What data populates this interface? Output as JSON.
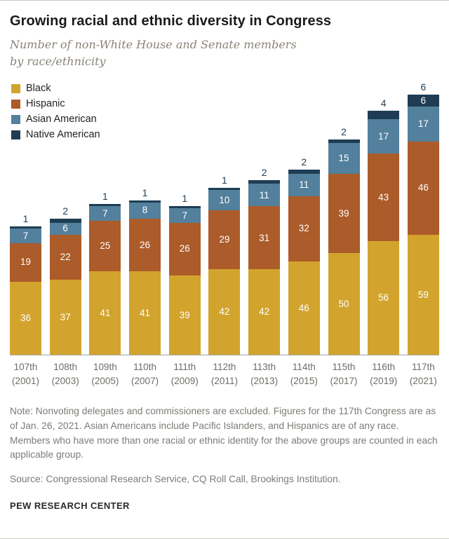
{
  "header": {
    "title": "Growing racial and ethnic diversity in Congress",
    "subtitle_line1": "Number of non-White House and Senate members",
    "subtitle_line2": "by race/ethnicity"
  },
  "chart_data": {
    "type": "bar",
    "stacked": true,
    "title": "Growing racial and ethnic diversity in Congress",
    "subtitle": "Number of non-White House and Senate members by race/ethnicity",
    "grid": false,
    "legend_position": "top-left",
    "top_labels_series": "Native American",
    "categories": [
      {
        "label": "107th",
        "year": "(2001)"
      },
      {
        "label": "108th",
        "year": "(2003)"
      },
      {
        "label": "109th",
        "year": "(2005)"
      },
      {
        "label": "110th",
        "year": "(2007)"
      },
      {
        "label": "111th",
        "year": "(2009)"
      },
      {
        "label": "112th",
        "year": "(2011)"
      },
      {
        "label": "113th",
        "year": "(2013)"
      },
      {
        "label": "114th",
        "year": "(2015)"
      },
      {
        "label": "115th",
        "year": "(2017)"
      },
      {
        "label": "116th",
        "year": "(2019)"
      },
      {
        "label": "117th",
        "year": "(2021)"
      }
    ],
    "series": [
      {
        "name": "Black",
        "color": "#d2a42e",
        "values": [
          36,
          37,
          41,
          41,
          39,
          42,
          42,
          46,
          50,
          56,
          59
        ]
      },
      {
        "name": "Hispanic",
        "color": "#ac5b2a",
        "values": [
          19,
          22,
          25,
          26,
          26,
          29,
          31,
          32,
          39,
          43,
          46
        ]
      },
      {
        "name": "Asian American",
        "color": "#53809c",
        "values": [
          7,
          6,
          7,
          8,
          7,
          10,
          11,
          11,
          15,
          17,
          17
        ]
      },
      {
        "name": "Native American",
        "color": "#1e3d54",
        "values": [
          1,
          2,
          1,
          1,
          1,
          1,
          2,
          2,
          2,
          4,
          6
        ]
      }
    ]
  },
  "notes": {
    "note": "Note: Nonvoting delegates and commissioners are excluded. Figures for the 117th Congress are as of Jan. 26, 2021. Asian Americans include Pacific Islanders, and Hispanics are of any race. Members who have more than one racial or ethnic identity for the above groups are counted in each applicable group.",
    "source": "Source: Congressional Research Service, CQ Roll Call, Brookings Institution."
  },
  "footer": {
    "brand": "PEW RESEARCH CENTER"
  }
}
